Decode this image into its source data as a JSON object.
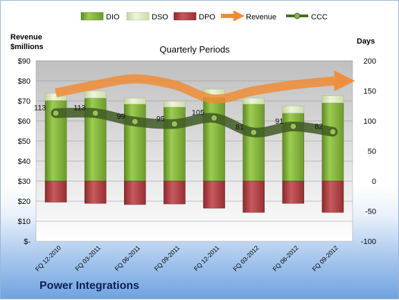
{
  "chart_data": {
    "type": "bar",
    "title": "Quarterly Periods",
    "company": "Power Integrations",
    "y_left_label_lines": [
      "Revenue",
      "$millions"
    ],
    "y_right_label": "Days",
    "ylim_left": [
      0,
      90
    ],
    "ylim_right": [
      -100,
      200
    ],
    "y_left_ticks": [
      {
        "value": 90,
        "label": "$90"
      },
      {
        "value": 80,
        "label": "$80"
      },
      {
        "value": 70,
        "label": "$70"
      },
      {
        "value": 60,
        "label": "$60"
      },
      {
        "value": 50,
        "label": "$50"
      },
      {
        "value": 40,
        "label": "$40"
      },
      {
        "value": 30,
        "label": "$30"
      },
      {
        "value": 20,
        "label": "$20"
      },
      {
        "value": 10,
        "label": "$10"
      },
      {
        "value": 0,
        "label": "$-"
      }
    ],
    "y_right_ticks": [
      200,
      150,
      100,
      50,
      0,
      -50,
      -100
    ],
    "categories": [
      "FQ 12-2010",
      "FQ 03-2011",
      "FQ 06-2011",
      "FQ 09-2011",
      "FQ 12-2011",
      "FQ 03-2012",
      "FQ 06-2012",
      "FQ 09-2012"
    ],
    "legend_placement": "top",
    "series": [
      {
        "name": "DIO",
        "axis": "right",
        "kind": "stacked-bar",
        "color": "#77a033",
        "values": [
          134,
          138,
          128,
          123,
          139,
          128,
          113,
          130
        ]
      },
      {
        "name": "DSO",
        "axis": "right",
        "kind": "stacked-bar",
        "color": "#d7e4bd",
        "values": [
          12,
          12,
          10,
          10,
          14,
          10,
          12,
          12
        ]
      },
      {
        "name": "DPO",
        "axis": "right",
        "kind": "bar-negative",
        "color": "#a33a3e",
        "values": [
          -35,
          -37,
          -39,
          -38,
          -45,
          -52,
          -37,
          -52
        ]
      },
      {
        "name": "Revenue",
        "axis": "left",
        "kind": "arrow",
        "color": "#f08a30",
        "values": [
          74,
          78,
          81,
          78,
          71,
          75,
          78,
          80
        ]
      },
      {
        "name": "CCC",
        "axis": "right",
        "kind": "line",
        "color": "#4a6a2a",
        "values": [
          113,
          113,
          99,
          95,
          105,
          81,
          91,
          82
        ],
        "labels": [
          "113",
          "113",
          "99",
          "95",
          "105",
          "81",
          "91",
          "82"
        ]
      }
    ],
    "grid": true
  }
}
